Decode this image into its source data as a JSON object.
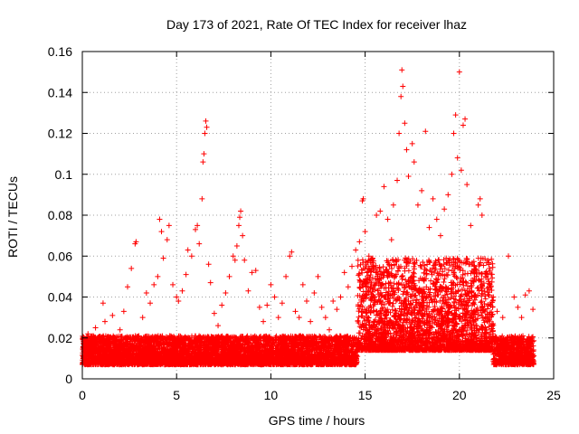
{
  "chart_data": {
    "type": "scatter",
    "title": "Day 173 of 2021, Rate Of TEC Index for receiver lhaz",
    "xlabel": "GPS time / hours",
    "ylabel": "ROTI / TECUs",
    "xlim": [
      0,
      25
    ],
    "ylim": [
      0,
      0.16
    ],
    "xticks": [
      0,
      5,
      10,
      15,
      20,
      25
    ],
    "xtick_labels": [
      "0",
      "5",
      "10",
      "15",
      "20",
      "25"
    ],
    "yticks": [
      0,
      0.02,
      0.04,
      0.06,
      0.08,
      0.1,
      0.12,
      0.14,
      0.16
    ],
    "ytick_labels": [
      "0",
      "0.02",
      "0.04",
      "0.06",
      "0.08",
      "0.1",
      "0.12",
      "0.14",
      "0.16"
    ],
    "grid": true,
    "marker": "+",
    "color": "#ff0000",
    "series": [
      {
        "name": "",
        "points": [
          [
            0.1,
            0.015
          ],
          [
            0.3,
            0.022
          ],
          [
            0.5,
            0.018
          ],
          [
            0.7,
            0.025
          ],
          [
            0.9,
            0.012
          ],
          [
            1.1,
            0.037
          ],
          [
            1.2,
            0.028
          ],
          [
            1.4,
            0.02
          ],
          [
            1.6,
            0.031
          ],
          [
            1.8,
            0.016
          ],
          [
            2.0,
            0.024
          ],
          [
            2.2,
            0.033
          ],
          [
            2.4,
            0.045
          ],
          [
            2.6,
            0.054
          ],
          [
            2.8,
            0.066
          ],
          [
            2.85,
            0.067
          ],
          [
            3.0,
            0.021
          ],
          [
            3.2,
            0.03
          ],
          [
            3.4,
            0.042
          ],
          [
            3.6,
            0.037
          ],
          [
            3.8,
            0.046
          ],
          [
            4.0,
            0.05
          ],
          [
            4.1,
            0.078
          ],
          [
            4.2,
            0.072
          ],
          [
            4.3,
            0.059
          ],
          [
            4.5,
            0.068
          ],
          [
            4.6,
            0.075
          ],
          [
            4.8,
            0.046
          ],
          [
            5.0,
            0.04
          ],
          [
            5.1,
            0.038
          ],
          [
            5.3,
            0.043
          ],
          [
            5.5,
            0.051
          ],
          [
            5.6,
            0.063
          ],
          [
            5.8,
            0.06
          ],
          [
            6.0,
            0.073
          ],
          [
            6.1,
            0.075
          ],
          [
            6.2,
            0.066
          ],
          [
            6.35,
            0.088
          ],
          [
            6.4,
            0.106
          ],
          [
            6.45,
            0.11
          ],
          [
            6.5,
            0.12
          ],
          [
            6.55,
            0.126
          ],
          [
            6.6,
            0.123
          ],
          [
            6.7,
            0.056
          ],
          [
            6.8,
            0.047
          ],
          [
            7.0,
            0.032
          ],
          [
            7.2,
            0.026
          ],
          [
            7.4,
            0.036
          ],
          [
            7.6,
            0.042
          ],
          [
            7.8,
            0.05
          ],
          [
            8.0,
            0.06
          ],
          [
            8.1,
            0.058
          ],
          [
            8.2,
            0.065
          ],
          [
            8.3,
            0.075
          ],
          [
            8.35,
            0.079
          ],
          [
            8.4,
            0.082
          ],
          [
            8.5,
            0.07
          ],
          [
            8.6,
            0.058
          ],
          [
            8.8,
            0.043
          ],
          [
            9.0,
            0.052
          ],
          [
            9.2,
            0.053
          ],
          [
            9.4,
            0.035
          ],
          [
            9.6,
            0.028
          ],
          [
            9.8,
            0.036
          ],
          [
            10.0,
            0.046
          ],
          [
            10.2,
            0.04
          ],
          [
            10.4,
            0.03
          ],
          [
            10.6,
            0.037
          ],
          [
            10.8,
            0.05
          ],
          [
            11.0,
            0.06
          ],
          [
            11.1,
            0.062
          ],
          [
            11.3,
            0.033
          ],
          [
            11.5,
            0.03
          ],
          [
            11.7,
            0.046
          ],
          [
            11.9,
            0.038
          ],
          [
            12.1,
            0.028
          ],
          [
            12.3,
            0.042
          ],
          [
            12.5,
            0.05
          ],
          [
            12.7,
            0.035
          ],
          [
            12.9,
            0.03
          ],
          [
            13.1,
            0.024
          ],
          [
            13.3,
            0.038
          ],
          [
            13.5,
            0.034
          ],
          [
            13.7,
            0.04
          ],
          [
            13.9,
            0.052
          ],
          [
            14.1,
            0.045
          ],
          [
            14.3,
            0.055
          ],
          [
            14.5,
            0.063
          ],
          [
            14.7,
            0.067
          ],
          [
            14.85,
            0.087
          ],
          [
            14.9,
            0.088
          ],
          [
            15.0,
            0.072
          ],
          [
            15.2,
            0.06
          ],
          [
            15.4,
            0.055
          ],
          [
            15.6,
            0.08
          ],
          [
            15.8,
            0.082
          ],
          [
            16.0,
            0.094
          ],
          [
            16.2,
            0.078
          ],
          [
            16.4,
            0.068
          ],
          [
            16.5,
            0.085
          ],
          [
            16.7,
            0.097
          ],
          [
            16.8,
            0.12
          ],
          [
            16.9,
            0.138
          ],
          [
            16.95,
            0.151
          ],
          [
            17.0,
            0.143
          ],
          [
            17.1,
            0.125
          ],
          [
            17.2,
            0.112
          ],
          [
            17.3,
            0.099
          ],
          [
            17.5,
            0.115
          ],
          [
            17.6,
            0.106
          ],
          [
            17.8,
            0.085
          ],
          [
            18.0,
            0.092
          ],
          [
            18.2,
            0.121
          ],
          [
            18.4,
            0.074
          ],
          [
            18.6,
            0.088
          ],
          [
            18.8,
            0.078
          ],
          [
            19.0,
            0.07
          ],
          [
            19.2,
            0.083
          ],
          [
            19.4,
            0.09
          ],
          [
            19.6,
            0.1
          ],
          [
            19.7,
            0.12
          ],
          [
            19.8,
            0.129
          ],
          [
            19.9,
            0.108
          ],
          [
            20.0,
            0.15
          ],
          [
            20.1,
            0.102
          ],
          [
            20.2,
            0.124
          ],
          [
            20.3,
            0.127
          ],
          [
            20.4,
            0.095
          ],
          [
            20.6,
            0.075
          ],
          [
            20.8,
            0.055
          ],
          [
            21.0,
            0.085
          ],
          [
            21.1,
            0.088
          ],
          [
            21.2,
            0.08
          ],
          [
            21.4,
            0.05
          ],
          [
            21.6,
            0.046
          ],
          [
            21.8,
            0.04
          ],
          [
            22.0,
            0.033
          ],
          [
            22.3,
            0.03
          ],
          [
            22.6,
            0.06
          ],
          [
            22.9,
            0.04
          ],
          [
            23.1,
            0.035
          ],
          [
            23.3,
            0.03
          ],
          [
            23.5,
            0.041
          ],
          [
            23.7,
            0.043
          ],
          [
            23.9,
            0.034
          ]
        ]
      }
    ]
  }
}
